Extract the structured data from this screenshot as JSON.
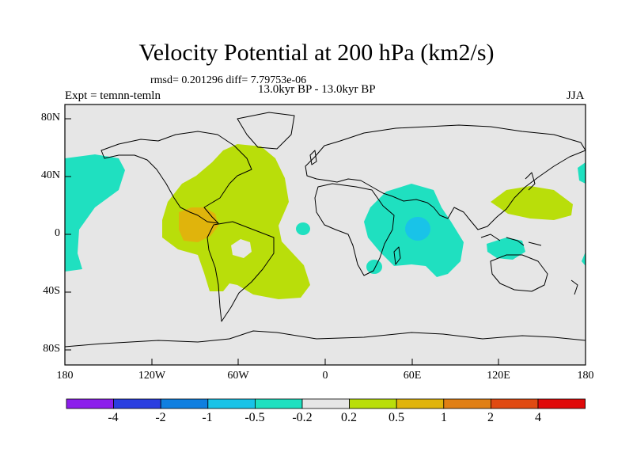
{
  "title": "Velocity Potential at 200 hPa (km2/s)",
  "stats": "rmsd= 0.201296  diff= 7.79753e-06",
  "period": "13.0kyr BP - 13.0kyr BP",
  "experiment": "Expt = temnn-temln",
  "season": "JJA",
  "lat_labels": [
    "80N",
    "40N",
    "0",
    "40S",
    "80S"
  ],
  "lon_labels": [
    "180",
    "120W",
    "60W",
    "0",
    "60E",
    "120E",
    "180"
  ],
  "colorbar": {
    "labels": [
      "-4",
      "-2",
      "-1",
      "-0.5",
      "-0.2",
      "0.2",
      "0.5",
      "1",
      "2",
      "4"
    ],
    "colors": [
      "#8c1eeb",
      "#2a3ee0",
      "#0f7fe0",
      "#19c3e8",
      "#1fe0c0",
      "#e6e6e6",
      "#b9de0a",
      "#e0b40c",
      "#e07f14",
      "#e04a12",
      "#e00a0a"
    ]
  }
}
